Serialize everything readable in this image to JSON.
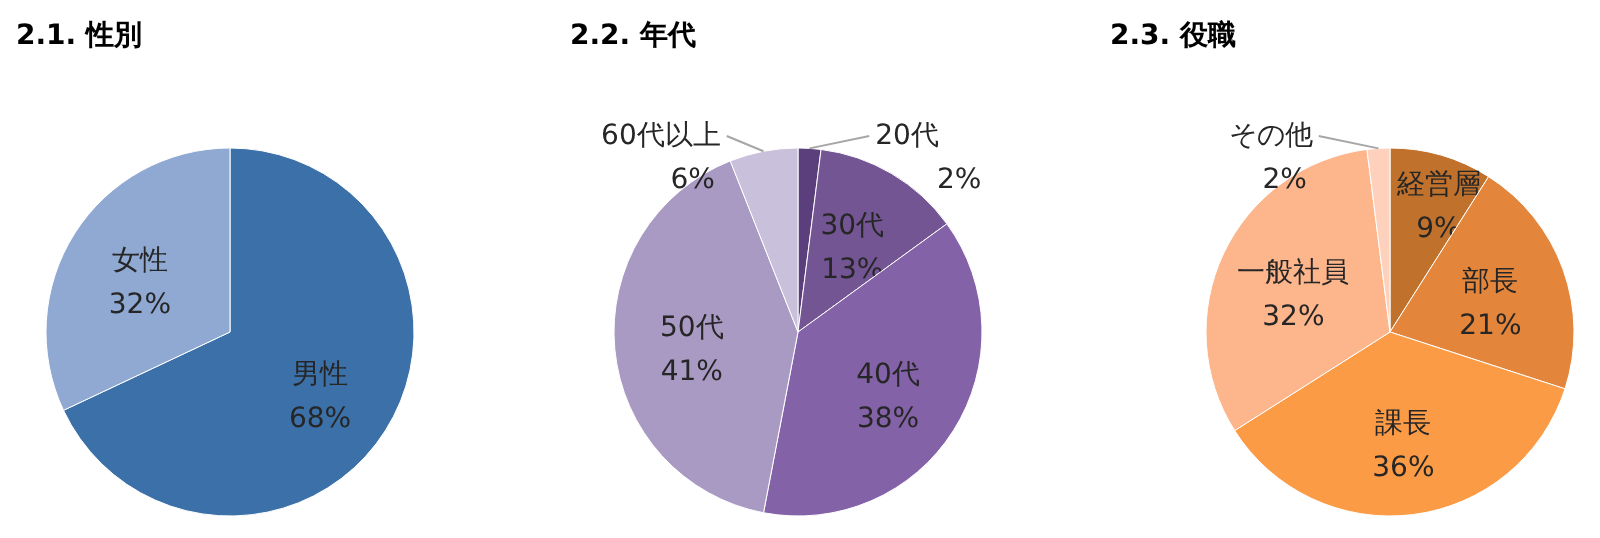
{
  "chart_data": [
    {
      "type": "pie",
      "title": "2.1.  性別",
      "categories": [
        "男性",
        "女性"
      ],
      "values": [
        68,
        32
      ],
      "value_labels": [
        "68%",
        "32%"
      ],
      "colors": [
        "#3b70a8",
        "#8fa9d3"
      ]
    },
    {
      "type": "pie",
      "title": "2.2.  年代",
      "categories": [
        "20代",
        "30代",
        "40代",
        "50代",
        "60代以上"
      ],
      "values": [
        2,
        13,
        38,
        41,
        6
      ],
      "value_labels": [
        "2%",
        "13%",
        "38%",
        "41%",
        "6%"
      ],
      "colors": [
        "#5b3f7c",
        "#735593",
        "#8462a8",
        "#a99ac3",
        "#c9c1db"
      ]
    },
    {
      "type": "pie",
      "title": "2.3.  役職",
      "categories": [
        "経営層",
        "部長",
        "課長",
        "一般社員",
        "その他"
      ],
      "values": [
        9,
        21,
        36,
        32,
        2
      ],
      "value_labels": [
        "9%",
        "21%",
        "36%",
        "32%",
        "2%"
      ],
      "colors": [
        "#c0712b",
        "#e3863b",
        "#fb9b46",
        "#fdb58b",
        "#fdd1bc"
      ]
    }
  ]
}
